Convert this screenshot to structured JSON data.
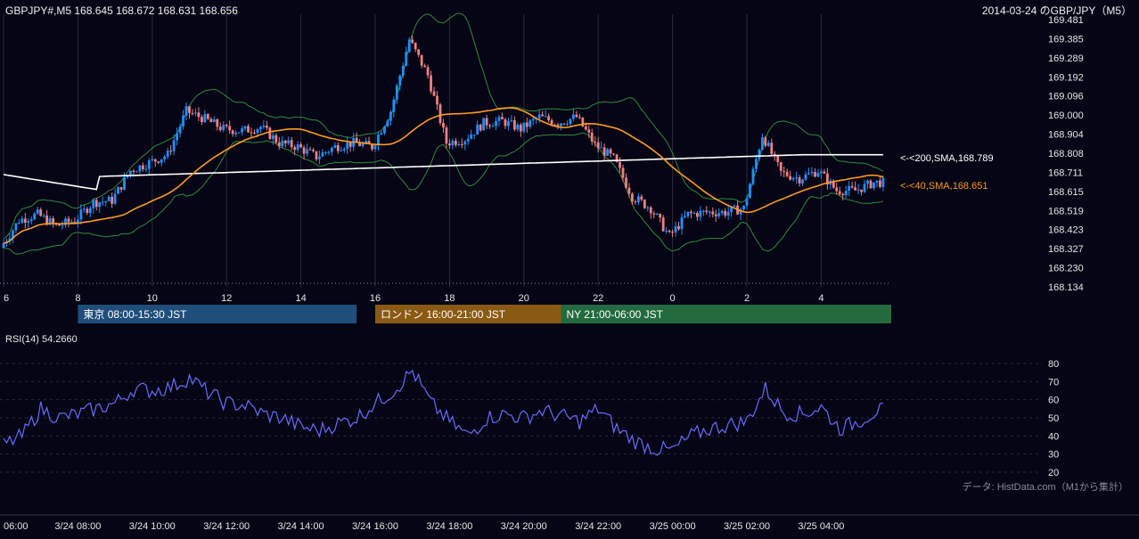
{
  "header": {
    "symbol_line": "GBPJPY#,M5 168.645 168.672 168.631 168.656",
    "title_right": "2014-03-24 のGBP/JPY（M5）"
  },
  "colors": {
    "background": "#050515",
    "grid": "#2a2a3a",
    "candle_up": "#1e90ff",
    "candle_down": "#f08080",
    "sma40": "#ff9a1f",
    "sma200": "#ffffff",
    "bollinger": "#2e8b3c",
    "rsi_line": "#6a6aff",
    "tokyo": "#1f4e7a",
    "london": "#8a5a14",
    "ny": "#236b3f"
  },
  "price_axis": {
    "ticks": [
      "169.481",
      "169.385",
      "169.289",
      "169.192",
      "169.096",
      "169.000",
      "168.904",
      "168.808",
      "168.711",
      "168.615",
      "168.519",
      "168.423",
      "168.327",
      "168.230",
      "168.134"
    ]
  },
  "hour_axis": {
    "ticks": [
      "6",
      "8",
      "10",
      "12",
      "14",
      "16",
      "18",
      "20",
      "22",
      "0",
      "2",
      "4"
    ]
  },
  "annotations": {
    "sma200": "<-<200,SMA,168.789",
    "sma40": "<-<40,SMA,168.651"
  },
  "sessions": [
    {
      "label": "東京 08:00-15:30 JST",
      "start_hour": 8.0,
      "end_hour": 15.5
    },
    {
      "label": "ロンドン 16:00-21:00 JST",
      "start_hour": 16.0,
      "end_hour": 21.0
    },
    {
      "label": "NY 21:00-06:00 JST",
      "start_hour": 21.0,
      "end_hour": 30.0
    }
  ],
  "rsi": {
    "label": "RSI(14) 54.2660",
    "ticks": [
      "80",
      "70",
      "60",
      "50",
      "40",
      "30",
      "20"
    ]
  },
  "source_note": "データ: HistData.com（M1から集計）",
  "date_axis": {
    "ticks": [
      "06:00",
      "3/24 08:00",
      "3/24 10:00",
      "3/24 12:00",
      "3/24 14:00",
      "3/24 16:00",
      "3/24 18:00",
      "3/24 20:00",
      "3/24 22:00",
      "3/25 00:00",
      "3/25 02:00",
      "3/25 04:00"
    ]
  },
  "chart_data": {
    "type": "line",
    "title": "2014-03-24 のGBP/JPY（M5）",
    "x_unit": "hour (JST, 2014-03-24 06:00 to 2014-03-25 05:40)",
    "ylim": [
      168.134,
      169.481
    ],
    "close_series": {
      "name": "GBPJPY M5 close",
      "x": [
        6.0,
        6.5,
        7.0,
        7.5,
        8.0,
        8.5,
        9.0,
        9.5,
        10.0,
        10.5,
        11.0,
        11.5,
        12.0,
        12.5,
        13.0,
        13.5,
        14.0,
        14.5,
        15.0,
        15.5,
        16.0,
        16.5,
        17.0,
        17.5,
        18.0,
        18.5,
        19.0,
        19.5,
        20.0,
        20.5,
        21.0,
        21.5,
        22.0,
        22.5,
        23.0,
        23.5,
        24.0,
        24.5,
        25.0,
        25.5,
        26.0,
        26.5,
        27.0,
        27.5,
        28.0,
        28.5,
        29.0,
        29.5
      ],
      "values": [
        168.33,
        168.47,
        168.5,
        168.44,
        168.47,
        168.56,
        168.57,
        168.72,
        168.76,
        168.8,
        169.02,
        168.98,
        168.93,
        168.92,
        168.94,
        168.86,
        168.84,
        168.79,
        168.84,
        168.86,
        168.84,
        169.02,
        169.38,
        169.2,
        168.86,
        168.88,
        168.96,
        168.97,
        168.93,
        168.99,
        168.96,
        168.99,
        168.85,
        168.78,
        168.59,
        168.53,
        168.39,
        168.5,
        168.51,
        168.51,
        168.53,
        168.9,
        168.71,
        168.68,
        168.72,
        168.62,
        168.62,
        168.66
      ]
    },
    "rsi_series": {
      "name": "RSI(14)",
      "x": [
        6.0,
        6.5,
        7.0,
        7.5,
        8.0,
        8.5,
        9.0,
        9.5,
        10.0,
        10.5,
        11.0,
        11.5,
        12.0,
        12.5,
        13.0,
        13.5,
        14.0,
        14.5,
        15.0,
        15.5,
        16.0,
        16.5,
        17.0,
        17.5,
        18.0,
        18.5,
        19.0,
        19.5,
        20.0,
        20.5,
        21.0,
        21.5,
        22.0,
        22.5,
        23.0,
        23.5,
        24.0,
        24.5,
        25.0,
        25.5,
        26.0,
        26.5,
        27.0,
        27.5,
        28.0,
        28.5,
        29.0,
        29.5
      ],
      "values": [
        35,
        40,
        55,
        50,
        52,
        55,
        58,
        66,
        65,
        67,
        72,
        64,
        58,
        57,
        52,
        50,
        45,
        43,
        47,
        50,
        58,
        65,
        76,
        58,
        48,
        40,
        50,
        52,
        50,
        54,
        51,
        48,
        55,
        44,
        37,
        33,
        32,
        40,
        44,
        46,
        48,
        66,
        53,
        52,
        56,
        44,
        48,
        54
      ],
      "ylim": [
        20,
        80
      ]
    }
  }
}
